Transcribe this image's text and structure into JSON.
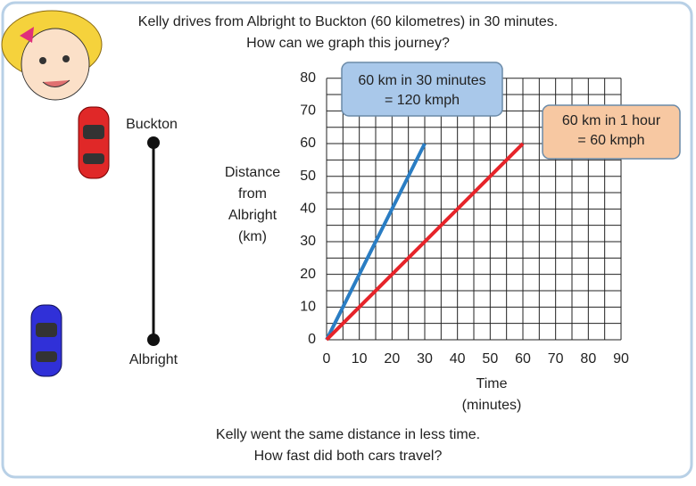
{
  "chart_data": {
    "type": "line",
    "title": [
      "Kelly drives from Albright to Buckton (60 kilometres) in 30 minutes.",
      "How can we graph this journey?"
    ],
    "footer": [
      "Kelly went the same distance in less time.",
      "How fast did both cars travel?"
    ],
    "x_label": [
      "Time",
      "(minutes)"
    ],
    "y_label": [
      "Distance",
      "from",
      "Albright",
      "(km)"
    ],
    "place_labels": [
      "Buckton",
      "Albright"
    ],
    "annotations": [
      {
        "text": [
          "60 km in 30 minutes",
          "= 120 kmph"
        ],
        "color": "#a9c8ea"
      },
      {
        "text": [
          "60 km in 1 hour",
          "= 60 kmph"
        ],
        "color": "#f7c8a2"
      }
    ],
    "x": [
      0,
      30,
      60
    ],
    "series": [
      {
        "color": "#2a7dc3",
        "values": [
          0,
          60,
          null
        ]
      },
      {
        "color": "#e6242a",
        "values": [
          0,
          null,
          60
        ]
      }
    ],
    "xlim": [
      0,
      90
    ],
    "ylim": [
      0,
      80
    ],
    "xticks": [
      0,
      10,
      20,
      30,
      40,
      50,
      60,
      70,
      80,
      90
    ],
    "yticks": [
      0,
      10,
      20,
      30,
      40,
      50,
      60,
      70,
      80
    ],
    "grid": true
  }
}
